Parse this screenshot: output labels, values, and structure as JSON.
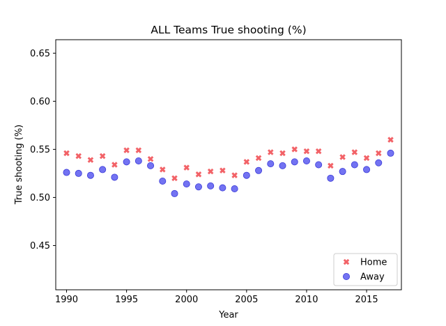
{
  "chart_data": {
    "type": "scatter",
    "title": "ALL Teams True shooting (%)",
    "xlabel": "Year",
    "ylabel": "True shooting (%)",
    "xlim": [
      1989.1,
      2017.9
    ],
    "ylim": [
      0.404,
      0.664
    ],
    "xticks": [
      1990,
      1995,
      2000,
      2005,
      2010,
      2015
    ],
    "yticks": [
      0.45,
      0.5,
      0.55,
      0.6,
      0.65
    ],
    "ytick_labels": [
      "0.45",
      "0.50",
      "0.55",
      "0.60",
      "0.65"
    ],
    "legend_position": "lower-right",
    "series": [
      {
        "name": "Home",
        "marker": "x",
        "color": "#f0474c",
        "x": [
          1990,
          1991,
          1992,
          1993,
          1994,
          1995,
          1996,
          1997,
          1998,
          1999,
          2000,
          2001,
          2002,
          2003,
          2004,
          2005,
          2006,
          2007,
          2008,
          2009,
          2010,
          2011,
          2012,
          2013,
          2014,
          2015,
          2016,
          2017
        ],
        "y": [
          0.546,
          0.543,
          0.539,
          0.543,
          0.534,
          0.549,
          0.549,
          0.54,
          0.529,
          0.52,
          0.531,
          0.524,
          0.527,
          0.528,
          0.523,
          0.537,
          0.541,
          0.547,
          0.546,
          0.55,
          0.548,
          0.548,
          0.533,
          0.542,
          0.547,
          0.541,
          0.546,
          0.56
        ]
      },
      {
        "name": "Away",
        "marker": "o",
        "color": "#5a5af0",
        "x": [
          1990,
          1991,
          1992,
          1993,
          1994,
          1995,
          1996,
          1997,
          1998,
          1999,
          2000,
          2001,
          2002,
          2003,
          2004,
          2005,
          2006,
          2007,
          2008,
          2009,
          2010,
          2011,
          2012,
          2013,
          2014,
          2015,
          2016,
          2017
        ],
        "y": [
          0.526,
          0.525,
          0.523,
          0.529,
          0.521,
          0.537,
          0.538,
          0.533,
          0.517,
          0.504,
          0.514,
          0.511,
          0.512,
          0.51,
          0.509,
          0.523,
          0.528,
          0.535,
          0.533,
          0.537,
          0.538,
          0.534,
          0.52,
          0.527,
          0.534,
          0.529,
          0.536,
          0.546
        ]
      }
    ]
  }
}
